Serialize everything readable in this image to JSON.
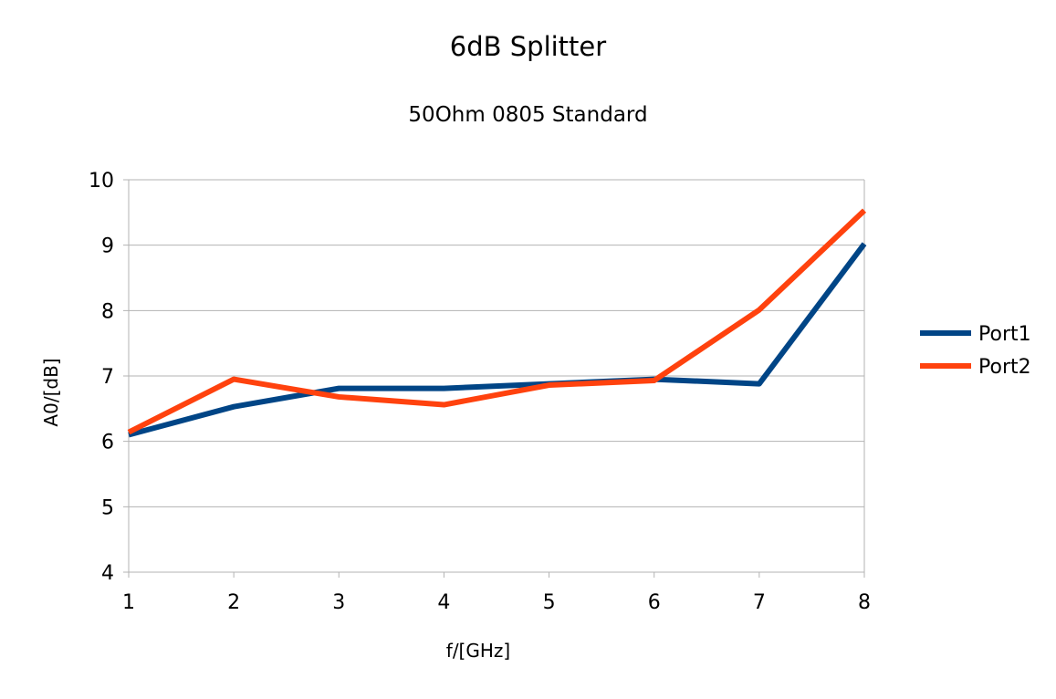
{
  "chart_data": {
    "type": "line",
    "title": "6dB Splitter",
    "subtitle": "50Ohm 0805 Standard",
    "xlabel": "f/[GHz]",
    "ylabel": "A0/[dB]",
    "x": [
      1,
      2,
      3,
      4,
      5,
      6,
      7,
      8
    ],
    "xlim": [
      1,
      8
    ],
    "ylim": [
      4,
      10
    ],
    "x_ticks": [
      "1",
      "2",
      "3",
      "4",
      "5",
      "6",
      "7",
      "8"
    ],
    "y_ticks": [
      "4",
      "5",
      "6",
      "7",
      "8",
      "9",
      "10"
    ],
    "grid": "horizontal",
    "legend_position": "right",
    "series": [
      {
        "name": "Port1",
        "color": "#004586",
        "values": [
          6.1,
          6.53,
          6.81,
          6.81,
          6.88,
          6.95,
          6.88,
          9.02
        ]
      },
      {
        "name": "Port2",
        "color": "#ff420e",
        "values": [
          6.14,
          6.95,
          6.68,
          6.56,
          6.86,
          6.93,
          8.01,
          9.53
        ]
      }
    ]
  }
}
